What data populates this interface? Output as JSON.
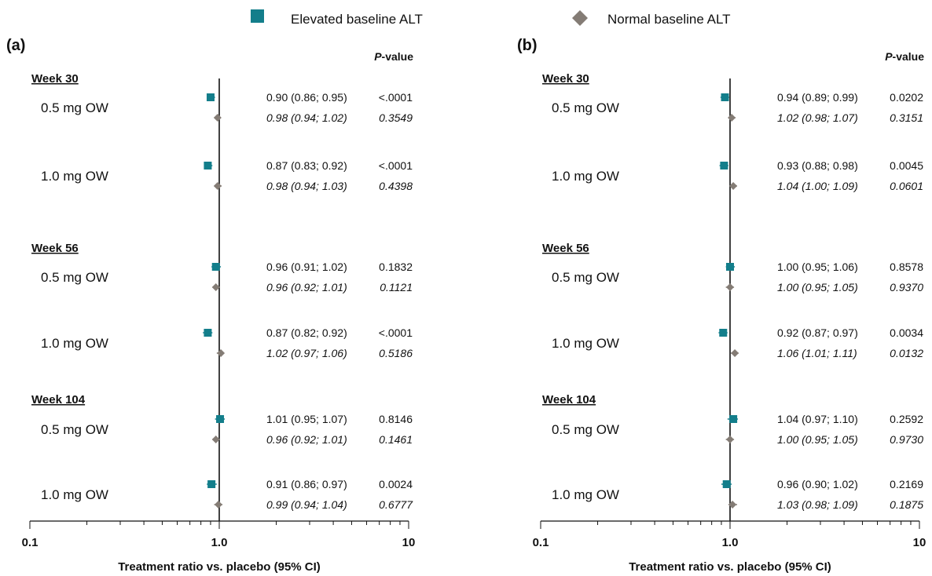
{
  "legend": [
    {
      "label": "Elevated baseline ALT",
      "color": "#137e8b",
      "marker": "square"
    },
    {
      "label": "Normal baseline ALT",
      "color": "#847c75",
      "marker": "diamond"
    }
  ],
  "chart_data": [
    {
      "type": "scatter",
      "panel_label": "(a)",
      "xscale": "log",
      "xlim": [
        0.1,
        10
      ],
      "xticks": [
        "0.1",
        "1.0",
        "10"
      ],
      "xlabel": "Treatment ratio vs. placebo (95% CI)",
      "reference_line": 1.0,
      "pvalue_header_prefix": "P",
      "pvalue_header_suffix": "-value",
      "groups": [
        {
          "week": "Week 30",
          "doses": [
            {
              "dose": "0.5 mg OW",
              "elevated": {
                "ratio": 0.9,
                "ci": [
                  0.86,
                  0.95
                ],
                "ci_text": "0.90 (0.86; 0.95)",
                "p": "<.0001"
              },
              "normal": {
                "ratio": 0.98,
                "ci": [
                  0.94,
                  1.02
                ],
                "ci_text": "0.98 (0.94; 1.02)",
                "p": "0.3549"
              }
            },
            {
              "dose": "1.0 mg OW",
              "elevated": {
                "ratio": 0.87,
                "ci": [
                  0.83,
                  0.92
                ],
                "ci_text": "0.87 (0.83; 0.92)",
                "p": "<.0001"
              },
              "normal": {
                "ratio": 0.98,
                "ci": [
                  0.94,
                  1.03
                ],
                "ci_text": "0.98 (0.94; 1.03)",
                "p": "0.4398"
              }
            }
          ]
        },
        {
          "week": "Week 56",
          "doses": [
            {
              "dose": "0.5 mg OW",
              "elevated": {
                "ratio": 0.96,
                "ci": [
                  0.91,
                  1.02
                ],
                "ci_text": "0.96 (0.91; 1.02)",
                "p": "0.1832"
              },
              "normal": {
                "ratio": 0.96,
                "ci": [
                  0.92,
                  1.01
                ],
                "ci_text": "0.96 (0.92; 1.01)",
                "p": "0.1121"
              }
            },
            {
              "dose": "1.0 mg OW",
              "elevated": {
                "ratio": 0.87,
                "ci": [
                  0.82,
                  0.92
                ],
                "ci_text": "0.87 (0.82; 0.92)",
                "p": "<.0001"
              },
              "normal": {
                "ratio": 1.02,
                "ci": [
                  0.97,
                  1.06
                ],
                "ci_text": "1.02 (0.97; 1.06)",
                "p": "0.5186"
              }
            }
          ]
        },
        {
          "week": "Week 104",
          "doses": [
            {
              "dose": "0.5 mg OW",
              "elevated": {
                "ratio": 1.01,
                "ci": [
                  0.95,
                  1.07
                ],
                "ci_text": "1.01 (0.95; 1.07)",
                "p": "0.8146"
              },
              "normal": {
                "ratio": 0.96,
                "ci": [
                  0.92,
                  1.01
                ],
                "ci_text": "0.96 (0.92; 1.01)",
                "p": "0.1461"
              }
            },
            {
              "dose": "1.0 mg OW",
              "elevated": {
                "ratio": 0.91,
                "ci": [
                  0.86,
                  0.97
                ],
                "ci_text": "0.91 (0.86; 0.97)",
                "p": "0.0024"
              },
              "normal": {
                "ratio": 0.99,
                "ci": [
                  0.94,
                  1.04
                ],
                "ci_text": "0.99 (0.94; 1.04)",
                "p": "0.6777"
              }
            }
          ]
        }
      ]
    },
    {
      "type": "scatter",
      "panel_label": "(b)",
      "xscale": "log",
      "xlim": [
        0.1,
        10
      ],
      "xticks": [
        "0.1",
        "1.0",
        "10"
      ],
      "xlabel": "Treatment ratio vs. placebo (95% CI)",
      "reference_line": 1.0,
      "pvalue_header_prefix": "P",
      "pvalue_header_suffix": "-value",
      "groups": [
        {
          "week": "Week 30",
          "doses": [
            {
              "dose": "0.5 mg OW",
              "elevated": {
                "ratio": 0.94,
                "ci": [
                  0.89,
                  0.99
                ],
                "ci_text": "0.94 (0.89; 0.99)",
                "p": "0.0202"
              },
              "normal": {
                "ratio": 1.02,
                "ci": [
                  0.98,
                  1.07
                ],
                "ci_text": "1.02 (0.98; 1.07)",
                "p": "0.3151"
              }
            },
            {
              "dose": "1.0 mg OW",
              "elevated": {
                "ratio": 0.93,
                "ci": [
                  0.88,
                  0.98
                ],
                "ci_text": "0.93 (0.88; 0.98)",
                "p": "0.0045"
              },
              "normal": {
                "ratio": 1.04,
                "ci": [
                  1.0,
                  1.09
                ],
                "ci_text": "1.04 (1.00; 1.09)",
                "p": "0.0601"
              }
            }
          ]
        },
        {
          "week": "Week 56",
          "doses": [
            {
              "dose": "0.5 mg OW",
              "elevated": {
                "ratio": 1.0,
                "ci": [
                  0.95,
                  1.06
                ],
                "ci_text": "1.00 (0.95; 1.06)",
                "p": "0.8578"
              },
              "normal": {
                "ratio": 1.0,
                "ci": [
                  0.95,
                  1.05
                ],
                "ci_text": "1.00 (0.95; 1.05)",
                "p": "0.9370"
              }
            },
            {
              "dose": "1.0 mg OW",
              "elevated": {
                "ratio": 0.92,
                "ci": [
                  0.87,
                  0.97
                ],
                "ci_text": "0.92 (0.87; 0.97)",
                "p": "0.0034"
              },
              "normal": {
                "ratio": 1.06,
                "ci": [
                  1.01,
                  1.11
                ],
                "ci_text": "1.06 (1.01; 1.11)",
                "p": "0.0132"
              }
            }
          ]
        },
        {
          "week": "Week 104",
          "doses": [
            {
              "dose": "0.5 mg OW",
              "elevated": {
                "ratio": 1.04,
                "ci": [
                  0.97,
                  1.1
                ],
                "ci_text": "1.04 (0.97; 1.10)",
                "p": "0.2592"
              },
              "normal": {
                "ratio": 1.0,
                "ci": [
                  0.95,
                  1.05
                ],
                "ci_text": "1.00 (0.95; 1.05)",
                "p": "0.9730"
              }
            },
            {
              "dose": "1.0 mg OW",
              "elevated": {
                "ratio": 0.96,
                "ci": [
                  0.9,
                  1.02
                ],
                "ci_text": "0.96 (0.90; 1.02)",
                "p": "0.2169"
              },
              "normal": {
                "ratio": 1.03,
                "ci": [
                  0.98,
                  1.09
                ],
                "ci_text": "1.03 (0.98; 1.09)",
                "p": "0.1875"
              }
            }
          ]
        }
      ]
    }
  ]
}
